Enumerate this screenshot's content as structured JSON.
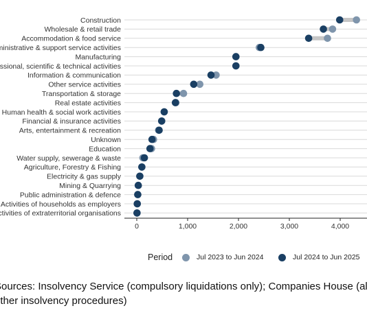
{
  "chart_data": {
    "type": "dumbbell",
    "categories": [
      "Construction",
      "Wholesale & retail trade",
      "Accommodation & food service",
      "Administrative & support service activities",
      "Manufacturing",
      "Professional, scientific & technical activities",
      "Information & communication",
      "Other service activities",
      "Transportation & storage",
      "Real estate activities",
      "Human health & social work activities",
      "Financial & insurance activities",
      "Arts, entertainment & recreation",
      "Unknown",
      "Education",
      "Water supply, sewerage & waste",
      "Agriculture, Forestry & Fishing",
      "Electricity & gas supply",
      "Mining & Quarrying",
      "Public administration & defence",
      "Activities of households as employers",
      "Activities of extraterritorial organisations"
    ],
    "series": [
      {
        "name": "Jul 2023 to Jun 2024",
        "color": "#7f95ac",
        "values": [
          4320,
          3850,
          3750,
          2410,
          1950,
          1950,
          1560,
          1240,
          920,
          770,
          540,
          490,
          430,
          330,
          290,
          120,
          100,
          60,
          30,
          20,
          10,
          5
        ]
      },
      {
        "name": "Jul 2024 to Jun 2025",
        "color": "#1a3f63",
        "values": [
          3990,
          3670,
          3380,
          2440,
          1950,
          1950,
          1460,
          1120,
          780,
          760,
          540,
          490,
          440,
          300,
          260,
          150,
          100,
          60,
          30,
          20,
          10,
          5
        ]
      }
    ],
    "x_ticks": [
      "0",
      "1,000",
      "2,000",
      "3,000",
      "4,000"
    ],
    "xlim": [
      -150,
      4600
    ],
    "legend_title": "Period",
    "legend_position": "bottom",
    "grid": "horizontal"
  },
  "source_lines": [
    "Sources: Insolvency Service (compulsory liquidations only); Companies House (all",
    "other insolvency procedures)"
  ]
}
